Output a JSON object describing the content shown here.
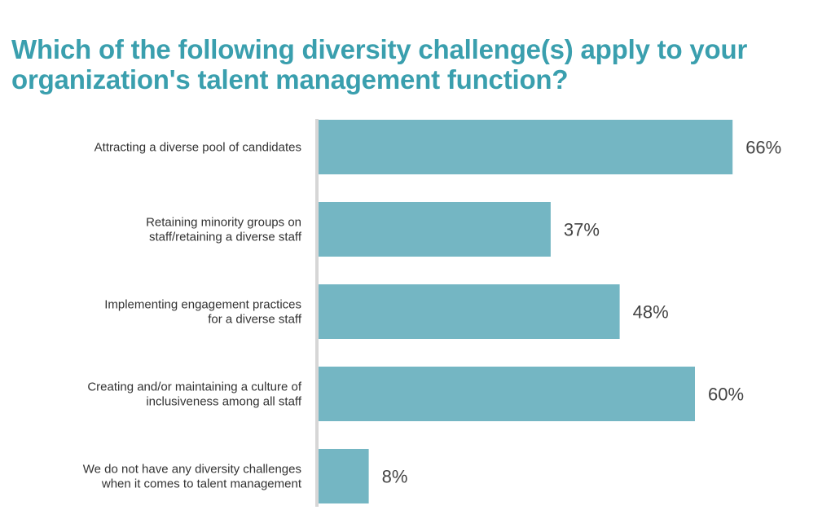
{
  "chart_data": {
    "type": "bar",
    "orientation": "horizontal",
    "title_lines": [
      "Which of the following diversity challenge(s) apply to your",
      "organization's talent management function?"
    ],
    "categories": [
      [
        "Attracting a diverse pool of candidates"
      ],
      [
        "Retaining minority groups on",
        "staff/retaining a diverse staff"
      ],
      [
        "Implementing engagement practices",
        "for a diverse staff"
      ],
      [
        "Creating and/or maintaining a culture of",
        "inclusiveness among all staff"
      ],
      [
        "We do not have any diversity challenges",
        "when it comes to talent management"
      ]
    ],
    "values": [
      66,
      37,
      48,
      60,
      8
    ],
    "value_labels": [
      "66%",
      "37%",
      "48%",
      "60%",
      "8%"
    ],
    "unit": "%",
    "xlim": [
      0,
      100
    ],
    "grid": false,
    "legend": "none",
    "colors": {
      "bar": "#74b6c3",
      "axis": "#d6d6d6",
      "title": "#3a9fae",
      "text": "#333333"
    }
  }
}
